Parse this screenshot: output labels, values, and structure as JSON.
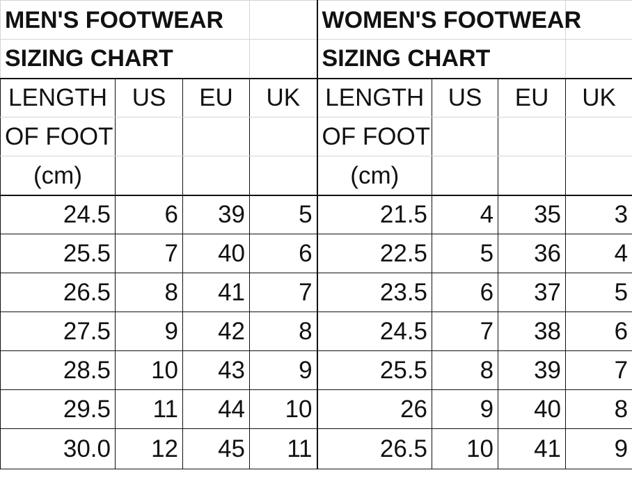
{
  "men": {
    "title_line1": "MEN'S FOOTWEAR",
    "title_line2": "SIZING CHART",
    "length_header": [
      "LENGTH",
      "OF FOOT",
      "(cm)"
    ],
    "columns": [
      "US",
      "EU",
      "UK"
    ],
    "rows": [
      [
        "24.5",
        "6",
        "39",
        "5"
      ],
      [
        "25.5",
        "7",
        "40",
        "6"
      ],
      [
        "26.5",
        "8",
        "41",
        "7"
      ],
      [
        "27.5",
        "9",
        "42",
        "8"
      ],
      [
        "28.5",
        "10",
        "43",
        "9"
      ],
      [
        "29.5",
        "11",
        "44",
        "10"
      ],
      [
        "30.0",
        "12",
        "45",
        "11"
      ]
    ]
  },
  "women": {
    "title_line1": "WOMEN'S FOOTWEAR",
    "title_line2": "SIZING CHART",
    "length_header": [
      "LENGTH",
      "OF FOOT",
      "(cm)"
    ],
    "columns": [
      "US",
      "EU",
      "UK"
    ],
    "rows": [
      [
        "21.5",
        "4",
        "35",
        "3"
      ],
      [
        "22.5",
        "5",
        "36",
        "4"
      ],
      [
        "23.5",
        "6",
        "37",
        "5"
      ],
      [
        "24.5",
        "7",
        "38",
        "6"
      ],
      [
        "25.5",
        "8",
        "39",
        "7"
      ],
      [
        "26",
        "9",
        "40",
        "8"
      ],
      [
        "26.5",
        "10",
        "41",
        "9"
      ]
    ]
  }
}
